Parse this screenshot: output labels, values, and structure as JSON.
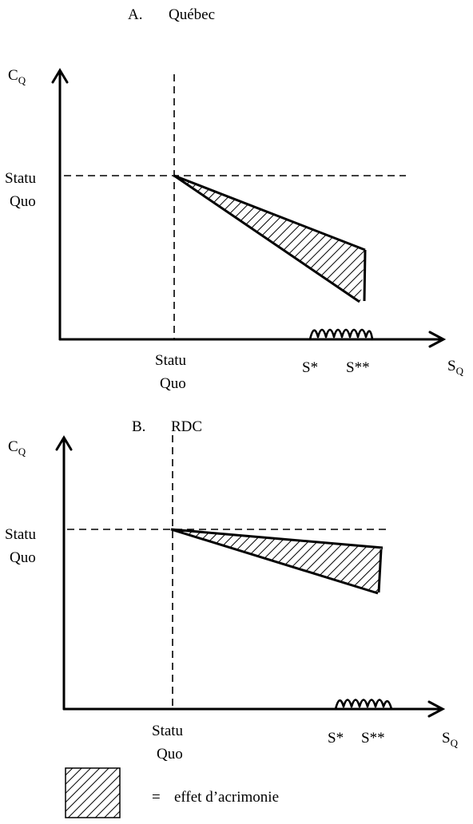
{
  "panels": [
    {
      "letter": "A.",
      "title": "Québec",
      "y_axis": "C",
      "x_axis": "S",
      "axis_subscript": "Q",
      "y_origin_label": [
        "Statu",
        "Quo"
      ],
      "x_origin_label": [
        "Statu",
        "Quo"
      ],
      "x_thresholds": [
        "S*",
        "S**"
      ]
    },
    {
      "letter": "B.",
      "title": "RDC",
      "y_axis": "C",
      "x_axis": "S",
      "axis_subscript": "Q",
      "y_origin_label": [
        "Statu",
        "Quo"
      ],
      "x_origin_label": [
        "Statu",
        "Quo"
      ],
      "x_thresholds": [
        "S*",
        "S**"
      ]
    }
  ],
  "legend": {
    "equals": "=",
    "label": "effet d’acrimonie"
  }
}
